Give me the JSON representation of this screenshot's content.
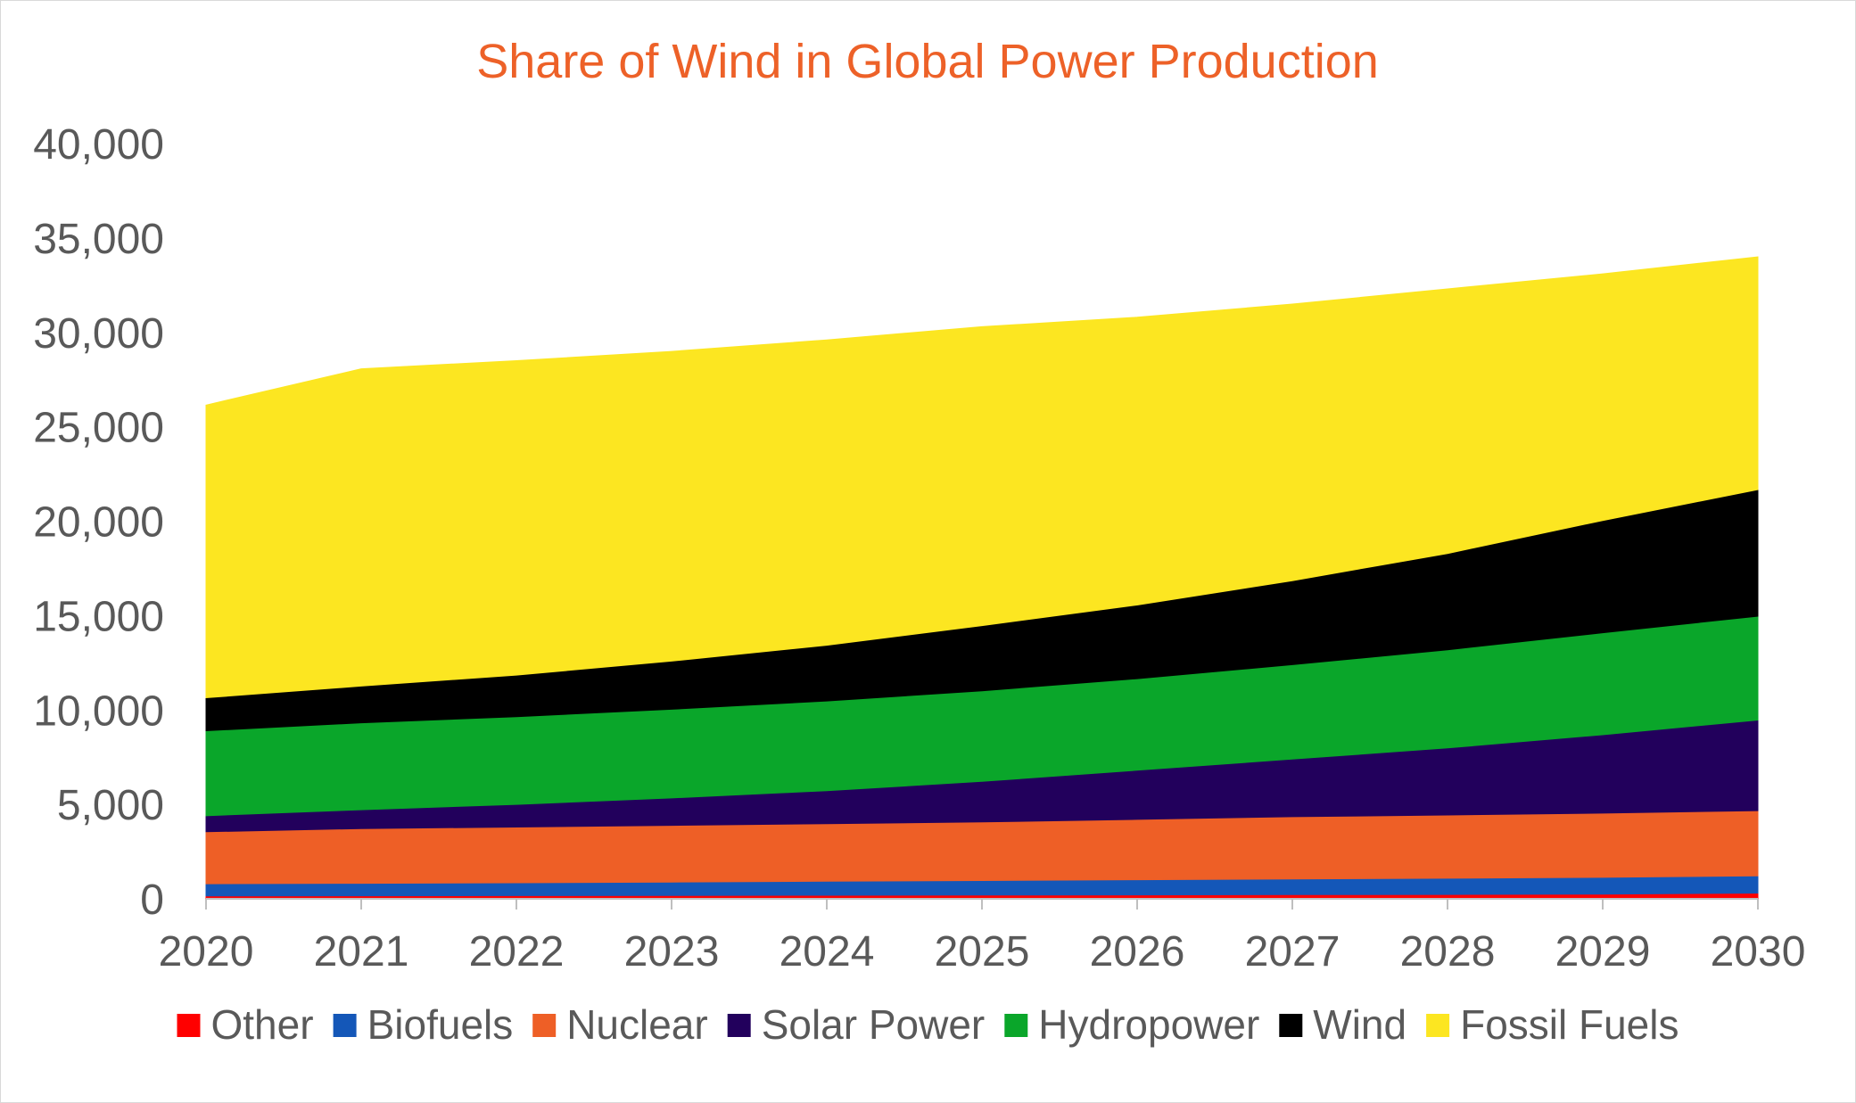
{
  "chart_data": {
    "type": "area",
    "stacked": true,
    "title": "Share of Wind in Global Power Production",
    "title_color": "#ED6128",
    "x": [
      "2020",
      "2021",
      "2022",
      "2023",
      "2024",
      "2025",
      "2026",
      "2027",
      "2028",
      "2029",
      "2030"
    ],
    "ylim": [
      0,
      40000
    ],
    "yticks": [
      0,
      5000,
      10000,
      15000,
      20000,
      25000,
      30000,
      35000,
      40000
    ],
    "ytick_labels": [
      "0",
      "5,000",
      "10,000",
      "15,000",
      "20,000",
      "25,000",
      "30,000",
      "35,000",
      "40,000"
    ],
    "grid": false,
    "legend_position": "bottom",
    "series": [
      {
        "name": "Other",
        "color": "#FF0000",
        "values": [
          150,
          160,
          170,
          180,
          190,
          200,
          210,
          220,
          230,
          250,
          300
        ]
      },
      {
        "name": "Biofuels",
        "color": "#1457B8",
        "values": [
          650,
          660,
          680,
          710,
          740,
          770,
          800,
          830,
          860,
          890,
          920
        ]
      },
      {
        "name": "Nuclear",
        "color": "#EE5F26",
        "values": [
          2750,
          2900,
          2950,
          3000,
          3050,
          3100,
          3200,
          3300,
          3350,
          3400,
          3450
        ]
      },
      {
        "name": "Solar Power",
        "color": "#22005C",
        "values": [
          850,
          1000,
          1200,
          1450,
          1750,
          2150,
          2600,
          3050,
          3550,
          4150,
          4800
        ]
      },
      {
        "name": "Hydropower",
        "color": "#0AA62A",
        "values": [
          4500,
          4600,
          4650,
          4700,
          4750,
          4800,
          4850,
          5000,
          5200,
          5400,
          5500
        ]
      },
      {
        "name": "Wind",
        "color": "#000000",
        "values": [
          1750,
          1950,
          2200,
          2550,
          2950,
          3450,
          3900,
          4450,
          5100,
          5950,
          6700
        ]
      },
      {
        "name": "Fossil Fuels",
        "color": "#FCE621",
        "values": [
          15500,
          16800,
          16650,
          16400,
          16170,
          15830,
          15240,
          14650,
          14010,
          13060,
          12330
        ]
      }
    ]
  }
}
